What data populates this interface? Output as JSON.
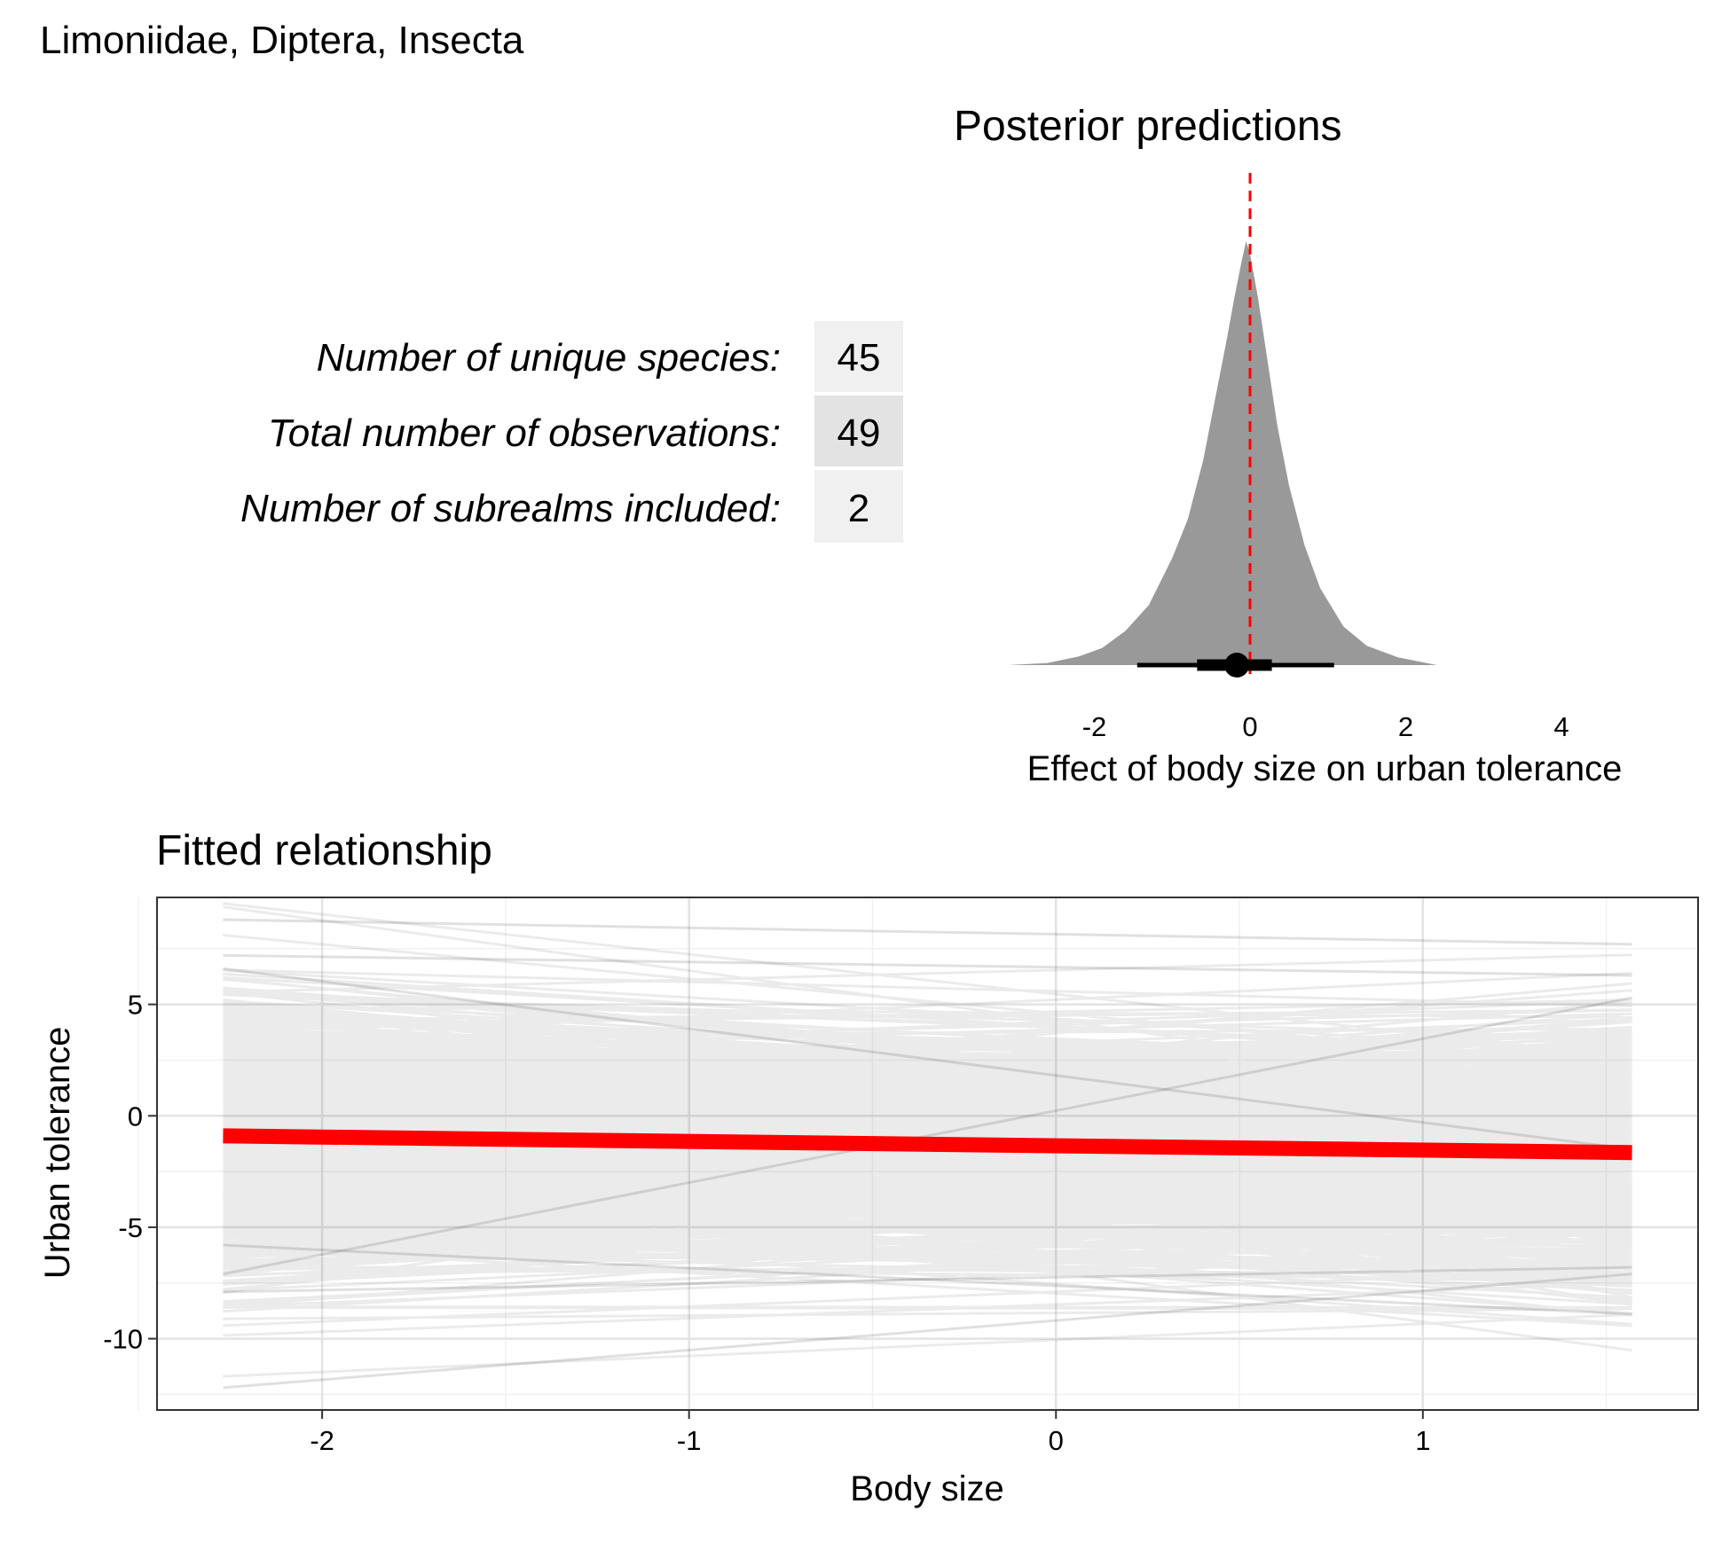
{
  "figure": {
    "title": "Limoniidae, Diptera, Insecta"
  },
  "stats_table": {
    "rows": [
      {
        "label": "Number of unique species:",
        "value": "45"
      },
      {
        "label": "Total number of observations:",
        "value": "49"
      },
      {
        "label": "Number of subrealms included:",
        "value": "2"
      }
    ],
    "cell_colors": [
      "#f0f0f0",
      "#e3e3e3",
      "#f0f0f0"
    ]
  },
  "chart_data": [
    {
      "type": "area",
      "title": "Posterior predictions",
      "xlabel": "Effect of body size on urban tolerance",
      "ylabel": "",
      "xlim": [
        -3.1,
        4.0
      ],
      "x_ticks": [
        "-2",
        "0",
        "2",
        "4"
      ],
      "x_tick_values": [
        -2,
        0,
        2,
        4
      ],
      "density": {
        "x": [
          -3.1,
          -2.6,
          -2.2,
          -1.9,
          -1.6,
          -1.3,
          -1.0,
          -0.8,
          -0.6,
          -0.45,
          -0.3,
          -0.2,
          -0.1,
          -0.05,
          0.0,
          0.1,
          0.2,
          0.35,
          0.5,
          0.7,
          0.9,
          1.2,
          1.5,
          1.9,
          2.4
        ],
        "y": [
          0.0,
          0.005,
          0.02,
          0.04,
          0.08,
          0.14,
          0.25,
          0.34,
          0.48,
          0.62,
          0.76,
          0.86,
          0.95,
          0.99,
          0.96,
          0.86,
          0.74,
          0.56,
          0.42,
          0.28,
          0.18,
          0.09,
          0.045,
          0.018,
          0.0
        ]
      },
      "fill_color": "#999999",
      "point_estimate": -0.17,
      "interval_inner": [
        -0.68,
        0.28
      ],
      "interval_outer": [
        -1.45,
        1.08
      ],
      "reference_line": 0,
      "reference_color": "#ff0000",
      "grid": false
    },
    {
      "type": "line",
      "title": "Fitted relationship",
      "xlabel": "Body size",
      "ylabel": "Urban tolerance",
      "xlim": [
        -2.45,
        1.75
      ],
      "ylim": [
        -13.2,
        9.8
      ],
      "x_ticks": [
        "-2",
        "-1",
        "0",
        "1"
      ],
      "x_tick_values": [
        -2,
        -1,
        0,
        1
      ],
      "y_ticks": [
        "-10",
        "-5",
        "0",
        "5"
      ],
      "y_tick_values": [
        -10,
        -5,
        0,
        5
      ],
      "x_range": [
        -2.27,
        1.57
      ],
      "mean_line": {
        "name": "",
        "x": [
          -2.27,
          1.57
        ],
        "y": [
          -0.9,
          -1.65
        ],
        "color": "#ff0000"
      },
      "draws": {
        "count": 1000,
        "intercept_mean": -1.35,
        "intercept_sd": 2.5,
        "slope_mean": -0.2,
        "slope_sd": 0.8,
        "color": "#000000",
        "opacity": 0.08
      },
      "extra_lines": [
        {
          "x": [
            -2.27,
            1.57
          ],
          "y": [
            8.8,
            7.7
          ]
        },
        {
          "x": [
            -2.27,
            1.57
          ],
          "y": [
            -12.2,
            -7.1
          ]
        },
        {
          "x": [
            -2.27,
            1.57
          ],
          "y": [
            -7.9,
            -6.8
          ]
        },
        {
          "x": [
            -2.27,
            1.57
          ],
          "y": [
            6.6,
            -1.5
          ]
        },
        {
          "x": [
            -2.27,
            1.57
          ],
          "y": [
            -5.8,
            -8.9
          ]
        },
        {
          "x": [
            -2.27,
            1.57
          ],
          "y": [
            7.2,
            6.3
          ]
        },
        {
          "x": [
            -2.27,
            1.57
          ],
          "y": [
            -7.1,
            5.3
          ]
        }
      ],
      "grid": true
    }
  ]
}
